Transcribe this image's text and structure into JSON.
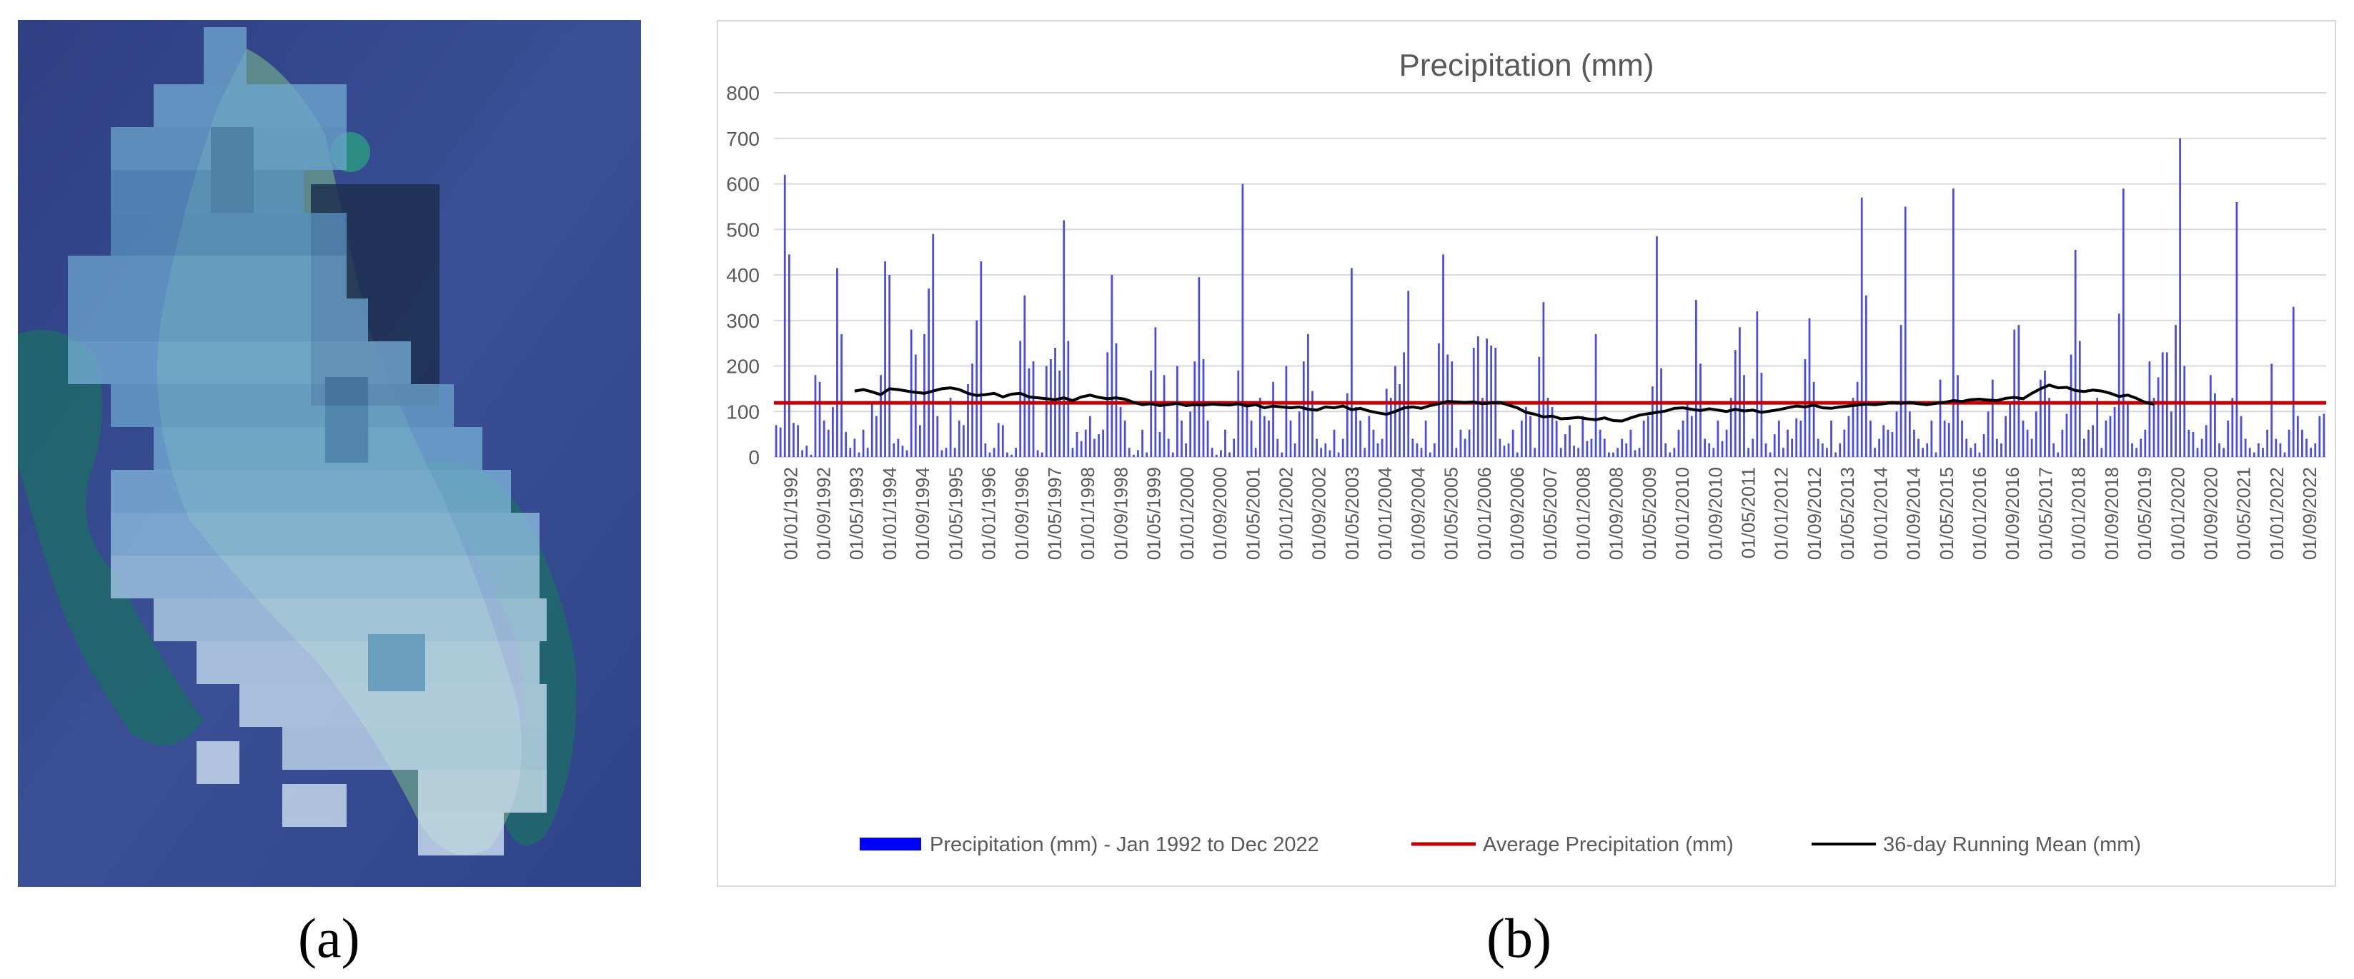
{
  "panels": {
    "a_label": "(a)",
    "b_label": "(b)"
  },
  "colors": {
    "bars": "#4a4ae8",
    "average": "#c00000",
    "running": "#000000",
    "grid": "#d9d9d9",
    "text": "#595959"
  },
  "chart_data": {
    "type": "bar",
    "title": "Precipitation (mm)",
    "xlabel": "",
    "ylabel": "",
    "ylim": [
      0,
      800
    ],
    "y_ticks": [
      "0",
      "100",
      "200",
      "300",
      "400",
      "500",
      "600",
      "700",
      "800"
    ],
    "grid": true,
    "legend_position": "bottom",
    "x_tick_labels": [
      "01/01/1992",
      "01/09/1992",
      "01/05/1993",
      "01/01/1994",
      "01/09/1994",
      "01/05/1995",
      "01/01/1996",
      "01/09/1996",
      "01/05/1997",
      "01/01/1998",
      "01/09/1998",
      "01/05/1999",
      "01/01/2000",
      "01/09/2000",
      "01/05/2001",
      "01/01/2002",
      "01/09/2002",
      "01/05/2003",
      "01/01/2004",
      "01/09/2004",
      "01/05/2005",
      "01/01/2006",
      "01/09/2006",
      "01/05/2007",
      "01/01/2008",
      "01/09/2008",
      "01/05/2009",
      "01/01/2010",
      "01/09/2010",
      "01/05/2011",
      "01/01/2012",
      "01/09/2012",
      "01/05/2013",
      "01/01/2014",
      "01/09/2014",
      "01/05/2015",
      "01/01/2016",
      "01/09/2016",
      "01/05/2017",
      "01/01/2018",
      "01/09/2018",
      "01/05/2019",
      "01/01/2020",
      "01/09/2020",
      "01/05/2021",
      "01/01/2022",
      "01/09/2022"
    ],
    "series": [
      {
        "name": "Precipitation (mm) - Jan 1992 to Dec 2022",
        "type": "bar",
        "values": [
          70,
          65,
          620,
          445,
          75,
          70,
          15,
          25,
          5,
          180,
          165,
          80,
          60,
          110,
          415,
          270,
          55,
          20,
          40,
          10,
          60,
          20,
          120,
          90,
          180,
          430,
          400,
          30,
          40,
          25,
          15,
          280,
          225,
          70,
          270,
          370,
          490,
          90,
          15,
          20,
          130,
          20,
          80,
          70,
          160,
          205,
          300,
          430,
          30,
          10,
          20,
          75,
          70,
          10,
          5,
          20,
          255,
          355,
          195,
          210,
          15,
          10,
          200,
          215,
          240,
          190,
          520,
          255,
          20,
          55,
          35,
          60,
          90,
          40,
          50,
          60,
          230,
          400,
          250,
          110,
          80,
          20,
          5,
          15,
          60,
          10,
          190,
          285,
          55,
          180,
          40,
          10,
          200,
          80,
          30,
          100,
          210,
          395,
          215,
          80,
          20,
          5,
          15,
          60,
          10,
          40,
          190,
          600,
          110,
          80,
          20,
          130,
          90,
          80,
          165,
          40,
          10,
          200,
          80,
          30,
          100,
          210,
          270,
          145,
          40,
          20,
          30,
          15,
          60,
          10,
          40,
          140,
          415,
          110,
          80,
          20,
          90,
          60,
          30,
          40,
          150,
          130,
          200,
          160,
          230,
          365,
          40,
          30,
          20,
          80,
          10,
          30,
          250,
          445,
          225,
          210,
          20,
          60,
          40,
          60,
          240,
          265,
          130,
          260,
          245,
          240,
          40,
          25,
          30,
          60,
          10,
          80,
          110,
          90,
          20,
          220,
          340,
          130,
          110,
          80,
          20,
          50,
          70,
          25,
          20,
          90,
          35,
          40,
          270,
          60,
          40,
          10,
          10,
          20,
          40,
          30,
          60,
          15,
          20,
          80,
          90,
          155,
          485,
          195,
          30,
          10,
          20,
          60,
          80,
          120,
          90,
          345,
          205,
          40,
          30,
          20,
          80,
          35,
          60,
          130,
          235,
          285,
          180,
          20,
          40,
          320,
          185,
          30,
          10,
          50,
          80,
          20,
          60,
          40,
          85,
          80,
          215,
          305,
          165,
          40,
          30,
          20,
          80,
          10,
          30,
          60,
          90,
          130,
          165,
          570,
          355,
          80,
          20,
          40,
          70,
          60,
          55,
          100,
          290,
          550,
          100,
          60,
          40,
          20,
          30,
          80,
          10,
          170,
          80,
          75,
          590,
          180,
          80,
          40,
          20,
          30,
          10,
          50,
          100,
          170,
          40,
          30,
          90,
          120,
          280,
          290,
          80,
          60,
          40,
          100,
          170,
          190,
          130,
          30,
          10,
          60,
          95,
          225,
          455,
          255,
          40,
          60,
          70,
          130,
          20,
          80,
          90,
          110,
          315,
          590,
          120,
          30,
          20,
          40,
          60,
          210,
          130,
          175,
          230,
          230,
          100,
          290,
          700,
          200,
          60,
          55,
          20,
          40,
          70,
          180,
          140,
          30,
          20,
          80,
          130,
          560,
          90,
          40,
          20,
          10,
          30,
          20,
          60,
          205,
          40,
          30,
          10,
          60,
          330,
          90,
          60,
          40,
          20,
          30,
          90,
          95
        ]
      },
      {
        "name": "Average Precipitation (mm)",
        "type": "line",
        "values": [
          119
        ]
      },
      {
        "name": "36-day Running Mean (mm)",
        "type": "line",
        "x_start_index": 18,
        "x_step": 2,
        "values": [
          145,
          148,
          143,
          137,
          150,
          148,
          145,
          142,
          140,
          145,
          150,
          152,
          148,
          140,
          135,
          137,
          140,
          132,
          138,
          140,
          132,
          130,
          128,
          126,
          130,
          124,
          132,
          136,
          131,
          128,
          130,
          127,
          120,
          115,
          117,
          113,
          115,
          118,
          113,
          115,
          114,
          116,
          115,
          114,
          117,
          112,
          115,
          108,
          112,
          110,
          108,
          110,
          105,
          103,
          110,
          108,
          112,
          104,
          107,
          101,
          97,
          94,
          100,
          108,
          110,
          107,
          113,
          117,
          122,
          121,
          120,
          121,
          117,
          119,
          120,
          114,
          108,
          98,
          94,
          88,
          90,
          84,
          85,
          87,
          84,
          82,
          86,
          80,
          79,
          86,
          92,
          95,
          98,
          101,
          107,
          108,
          105,
          102,
          106,
          103,
          100,
          105,
          101,
          103,
          98,
          101,
          104,
          108,
          112,
          110,
          114,
          108,
          107,
          110,
          112,
          114,
          116,
          115,
          117,
          120,
          118,
          120,
          117,
          115,
          118,
          120,
          124,
          122,
          126,
          127,
          125,
          124,
          129,
          131,
          128,
          140,
          150,
          158,
          152,
          153,
          146,
          144,
          147,
          145,
          140,
          133,
          136,
          129,
          120,
          116
        ]
      }
    ]
  }
}
